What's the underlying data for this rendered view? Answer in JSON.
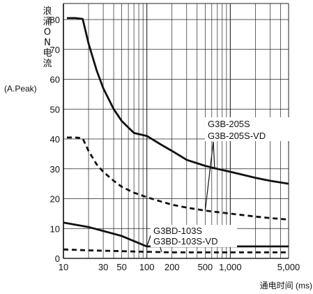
{
  "chart_data": {
    "type": "line",
    "x_scale": "log",
    "xlim": [
      10,
      5000
    ],
    "ylim": [
      0,
      85
    ],
    "y_ticks": [
      0,
      10,
      20,
      30,
      40,
      50,
      60,
      70,
      80
    ],
    "x_tick_values": [
      10,
      30,
      50,
      100,
      200,
      500,
      1000,
      5000
    ],
    "x_tick_labels": [
      "10",
      "30",
      "50",
      "100",
      "200",
      "500",
      "1,000",
      "5,000"
    ],
    "ylabel_chars": [
      "浪",
      "涌",
      "O",
      "N",
      "电",
      "流"
    ],
    "ylabel_unit": "(A.Peak)",
    "xlabel": "通电时间 (ms)",
    "grid": true,
    "series": [
      {
        "name": "G3B-205S",
        "style": "solid",
        "color": "#111111",
        "x": [
          11,
          14,
          17,
          20,
          25,
          30,
          40,
          50,
          70,
          100,
          150,
          200,
          300,
          500,
          700,
          1000,
          2000,
          3000,
          5000
        ],
        "y": [
          80.5,
          80.5,
          80.2,
          72,
          63,
          57,
          50,
          46,
          42,
          41,
          38,
          36,
          33,
          31,
          30,
          29,
          27,
          26,
          25
        ]
      },
      {
        "name": "G3B-205S-VD",
        "style": "dashed",
        "color": "#111111",
        "x": [
          11,
          14,
          17,
          20,
          25,
          30,
          40,
          50,
          70,
          100,
          150,
          200,
          300,
          500,
          700,
          1000,
          2000,
          3000,
          5000
        ],
        "y": [
          40.5,
          40.5,
          40.2,
          36,
          31.5,
          29,
          26,
          24,
          22,
          20.5,
          19,
          18,
          17,
          16,
          15.5,
          15,
          14,
          13.5,
          13
        ]
      },
      {
        "name": "G3BD-103S",
        "style": "solid",
        "color": "#111111",
        "x": [
          10,
          20,
          50,
          100,
          200,
          500,
          1000,
          2000,
          5000
        ],
        "y": [
          12,
          10.5,
          7.5,
          4,
          4,
          4,
          4,
          4,
          4
        ]
      },
      {
        "name": "G3BD-103S-VD",
        "style": "dashed",
        "color": "#111111",
        "x": [
          10,
          20,
          50,
          100,
          200,
          500,
          1000,
          2000,
          5000
        ],
        "y": [
          3,
          2.7,
          2.4,
          2.2,
          2.0,
          2.0,
          2.0,
          2.0,
          2.0
        ]
      }
    ],
    "annotations": [
      {
        "text": "G3B-205S",
        "targets": [
          "G3B-205S",
          "G3B-205S-VD"
        ]
      },
      {
        "text": "G3B-205S-VD"
      },
      {
        "text": "G3BD-103S",
        "targets": [
          "G3BD-103S",
          "G3BD-103S-VD"
        ]
      },
      {
        "text": "G3BD-103S-VD"
      }
    ]
  }
}
